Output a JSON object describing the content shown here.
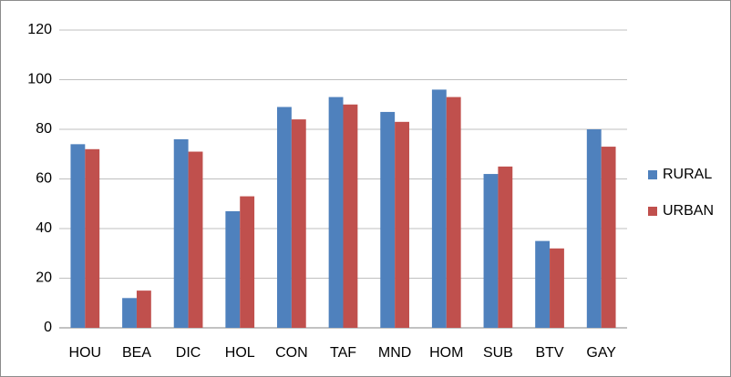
{
  "chart_data": {
    "type": "bar",
    "categories": [
      "HOU",
      "BEA",
      "DIC",
      "HOL",
      "CON",
      "TAF",
      "MND",
      "HOM",
      "SUB",
      "BTV",
      "GAY"
    ],
    "series": [
      {
        "name": "RURAL",
        "color": "#4f81bd",
        "values": [
          74,
          12,
          76,
          47,
          89,
          93,
          87,
          96,
          62,
          35,
          80
        ]
      },
      {
        "name": "URBAN",
        "color": "#c0504d",
        "values": [
          72,
          15,
          71,
          53,
          84,
          90,
          83,
          93,
          65,
          32,
          73
        ]
      }
    ],
    "ylim": [
      0,
      120
    ],
    "yticks": [
      0,
      20,
      40,
      60,
      80,
      100,
      120
    ],
    "grid": true,
    "legend": "right"
  }
}
